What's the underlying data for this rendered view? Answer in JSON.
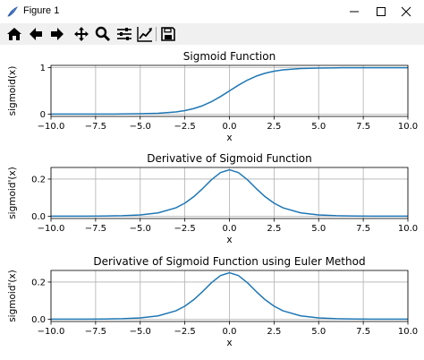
{
  "window": {
    "title": "Figure 1"
  },
  "toolbar": [
    {
      "name": "home-icon",
      "tip": "Home"
    },
    {
      "name": "back-icon",
      "tip": "Back"
    },
    {
      "name": "forward-icon",
      "tip": "Forward"
    },
    {
      "name": "pan-icon",
      "tip": "Pan"
    },
    {
      "name": "zoom-icon",
      "tip": "Zoom"
    },
    {
      "name": "subplots-icon",
      "tip": "Subplots"
    },
    {
      "name": "edit-curve-icon",
      "tip": "Customize"
    },
    {
      "name": "save-icon",
      "tip": "Save"
    }
  ],
  "colors": {
    "line": "#1f77b4",
    "grid": "#b0b0b0"
  },
  "chart_data": [
    {
      "type": "line",
      "title": "Sigmoid Function",
      "xlabel": "x",
      "ylabel": "sigmoid(x)",
      "xlim": [
        -10,
        10
      ],
      "ylim": [
        -0.05,
        1.05
      ],
      "xticks": [
        -10,
        -7.5,
        -5,
        -2.5,
        0,
        2.5,
        5,
        7.5,
        10
      ],
      "xtick_labels": [
        "−10.0",
        "−7.5",
        "−5.0",
        "−2.5",
        "0.0",
        "2.5",
        "5.0",
        "7.5",
        "10.0"
      ],
      "yticks": [
        0,
        1
      ],
      "ytick_labels": [
        "0",
        "1"
      ],
      "grid": true,
      "x": [
        -10,
        -9,
        -8,
        -7,
        -6,
        -5,
        -4,
        -3,
        -2.5,
        -2,
        -1.5,
        -1,
        -0.5,
        0,
        0.5,
        1,
        1.5,
        2,
        2.5,
        3,
        4,
        5,
        6,
        7,
        8,
        9,
        10
      ],
      "y": [
        4.54e-05,
        0.000123,
        0.000335,
        0.000911,
        0.00247,
        0.00669,
        0.018,
        0.0474,
        0.0759,
        0.119,
        0.182,
        0.269,
        0.378,
        0.5,
        0.622,
        0.731,
        0.818,
        0.881,
        0.924,
        0.953,
        0.982,
        0.993,
        0.998,
        0.999,
        1.0,
        1.0,
        1.0
      ]
    },
    {
      "type": "line",
      "title": "Derivative of Sigmoid Function",
      "xlabel": "x",
      "ylabel": "sigmoid'(x)",
      "xlim": [
        -10,
        10
      ],
      "ylim": [
        -0.0125,
        0.2625
      ],
      "xticks": [
        -10,
        -7.5,
        -5,
        -2.5,
        0,
        2.5,
        5,
        7.5,
        10
      ],
      "xtick_labels": [
        "−10.0",
        "−7.5",
        "−5.0",
        "−2.5",
        "0.0",
        "2.5",
        "5.0",
        "7.5",
        "10.0"
      ],
      "yticks": [
        0,
        0.2
      ],
      "ytick_labels": [
        "0.0",
        "0.2"
      ],
      "grid": true,
      "x": [
        -10,
        -9,
        -8,
        -7,
        -6,
        -5,
        -4,
        -3,
        -2.5,
        -2,
        -1.5,
        -1,
        -0.5,
        0,
        0.5,
        1,
        1.5,
        2,
        2.5,
        3,
        4,
        5,
        6,
        7,
        8,
        9,
        10
      ],
      "y": [
        4.54e-05,
        0.000123,
        0.000335,
        0.000911,
        0.00247,
        0.00665,
        0.0177,
        0.0452,
        0.0701,
        0.105,
        0.149,
        0.197,
        0.235,
        0.25,
        0.235,
        0.197,
        0.149,
        0.105,
        0.0701,
        0.0452,
        0.0177,
        0.00665,
        0.00247,
        0.000911,
        0.000335,
        0.000123,
        4.54e-05
      ]
    },
    {
      "type": "line",
      "title": "Derivative of Sigmoid Function using Euler Method",
      "xlabel": "x",
      "ylabel": "sigmoid'(x)",
      "xlim": [
        -10,
        10
      ],
      "ylim": [
        -0.0125,
        0.2625
      ],
      "xticks": [
        -10,
        -7.5,
        -5,
        -2.5,
        0,
        2.5,
        5,
        7.5,
        10
      ],
      "xtick_labels": [
        "−10.0",
        "−7.5",
        "−5.0",
        "−2.5",
        "0.0",
        "2.5",
        "5.0",
        "7.5",
        "10.0"
      ],
      "yticks": [
        0,
        0.2
      ],
      "ytick_labels": [
        "0.0",
        "0.2"
      ],
      "grid": true,
      "x": [
        -10,
        -9,
        -8,
        -7,
        -6,
        -5,
        -4,
        -3,
        -2.5,
        -2,
        -1.5,
        -1,
        -0.5,
        0,
        0.5,
        1,
        1.5,
        2,
        2.5,
        3,
        4,
        5,
        6,
        7,
        8,
        9,
        10
      ],
      "y": [
        4.54e-05,
        0.000123,
        0.000335,
        0.000911,
        0.00247,
        0.00665,
        0.0177,
        0.0452,
        0.0701,
        0.105,
        0.149,
        0.197,
        0.235,
        0.25,
        0.235,
        0.197,
        0.149,
        0.105,
        0.0701,
        0.0452,
        0.0177,
        0.00665,
        0.00247,
        0.000911,
        0.000335,
        0.000123,
        4.54e-05
      ]
    }
  ]
}
